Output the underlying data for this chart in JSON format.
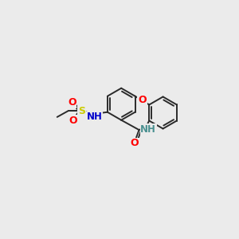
{
  "background_color": "#ebebeb",
  "bond_color": "#2a2a2a",
  "bond_width": 1.4,
  "atom_colors": {
    "O": "#ff0000",
    "N_amide": "#0000cc",
    "N_sul": "#0000cc",
    "S": "#cccc00",
    "H_amide": "#4a9090",
    "C": "#2a2a2a"
  },
  "font_size": 9,
  "bl": 26
}
